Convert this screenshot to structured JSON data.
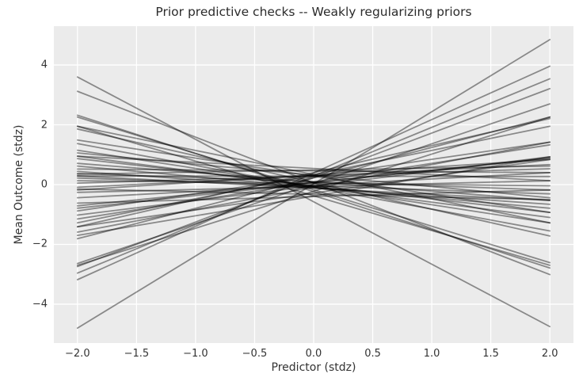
{
  "chart_data": {
    "type": "line",
    "title": "Prior predictive checks -- Weakly regularizing priors",
    "xlabel": "Predictor (stdz)",
    "ylabel": "Mean Outcome (stdz)",
    "xlim": [
      -2.2,
      2.2
    ],
    "ylim": [
      -5.3,
      5.3
    ],
    "x_domain": [
      -2,
      2
    ],
    "x_ticks": [
      -2.0,
      -1.5,
      -1.0,
      -0.5,
      0.0,
      0.5,
      1.0,
      1.5,
      2.0
    ],
    "x_tick_labels": [
      "−2.0",
      "−1.5",
      "−1.0",
      "−0.5",
      "0.0",
      "0.5",
      "1.0",
      "1.5",
      "2.0"
    ],
    "y_ticks": [
      -4,
      -2,
      0,
      2,
      4
    ],
    "y_tick_labels": [
      "−4",
      "−2",
      "0",
      "2",
      "4"
    ],
    "grid": true,
    "legend": false,
    "description": "Approximately 50 prior predictive regression lines y = a + b*x drawn from weakly regularizing priors; each entry is [y at x=-2, y at x=+2]",
    "lines": [
      [
        -4.8,
        4.85
      ],
      [
        3.6,
        -4.75
      ],
      [
        3.12,
        -3.01
      ],
      [
        -3.18,
        3.96
      ],
      [
        -2.96,
        3.54
      ],
      [
        -2.74,
        3.21
      ],
      [
        -2.7,
        2.26
      ],
      [
        -2.64,
        2.7
      ],
      [
        2.32,
        -2.79
      ],
      [
        2.26,
        -2.61
      ],
      [
        1.95,
        -2.7
      ],
      [
        1.86,
        -1.72
      ],
      [
        1.49,
        -0.93
      ],
      [
        1.37,
        -1.55
      ],
      [
        1.15,
        -1.28
      ],
      [
        1.06,
        -0.44
      ],
      [
        0.95,
        -1.1
      ],
      [
        0.95,
        0.13
      ],
      [
        0.71,
        -0.53
      ],
      [
        0.62,
        -0.79
      ],
      [
        0.52,
        0.4
      ],
      [
        0.44,
        -0.66
      ],
      [
        0.37,
        -0.18
      ],
      [
        0.29,
        -0.53
      ],
      [
        0.29,
        0.27
      ],
      [
        0.22,
        -0.31
      ],
      [
        0.13,
        -0.04
      ],
      [
        0.05,
        0.53
      ],
      [
        -0.09,
        0.67
      ],
      [
        -0.18,
        0.84
      ],
      [
        -0.26,
        0.13
      ],
      [
        -0.71,
        0.87
      ],
      [
        -0.79,
        0.9
      ],
      [
        -0.88,
        1.42
      ],
      [
        -1.02,
        0.93
      ],
      [
        -1.15,
        1.33
      ],
      [
        -1.28,
        1.95
      ],
      [
        -1.41,
        2.21
      ],
      [
        -1.41,
        0.84
      ],
      [
        -1.59,
        1.42
      ],
      [
        -1.7,
        0.93
      ],
      [
        -1.81,
        2.26
      ],
      [
        1.95,
        -1.28
      ],
      [
        0.87,
        -0.93
      ],
      [
        -0.44,
        0.4
      ],
      [
        -0.62,
        -0.18
      ],
      [
        0.35,
        0.62
      ],
      [
        -0.15,
        -0.5
      ]
    ],
    "style": {
      "axes_bg": "#ebebeb",
      "grid_color": "#ffffff",
      "line_color": "#000000",
      "line_opacity": 0.42,
      "line_width": 1.8,
      "text_color": "#333333",
      "title_color": "#2b2b2b",
      "figure_bg": "#ffffff"
    }
  }
}
